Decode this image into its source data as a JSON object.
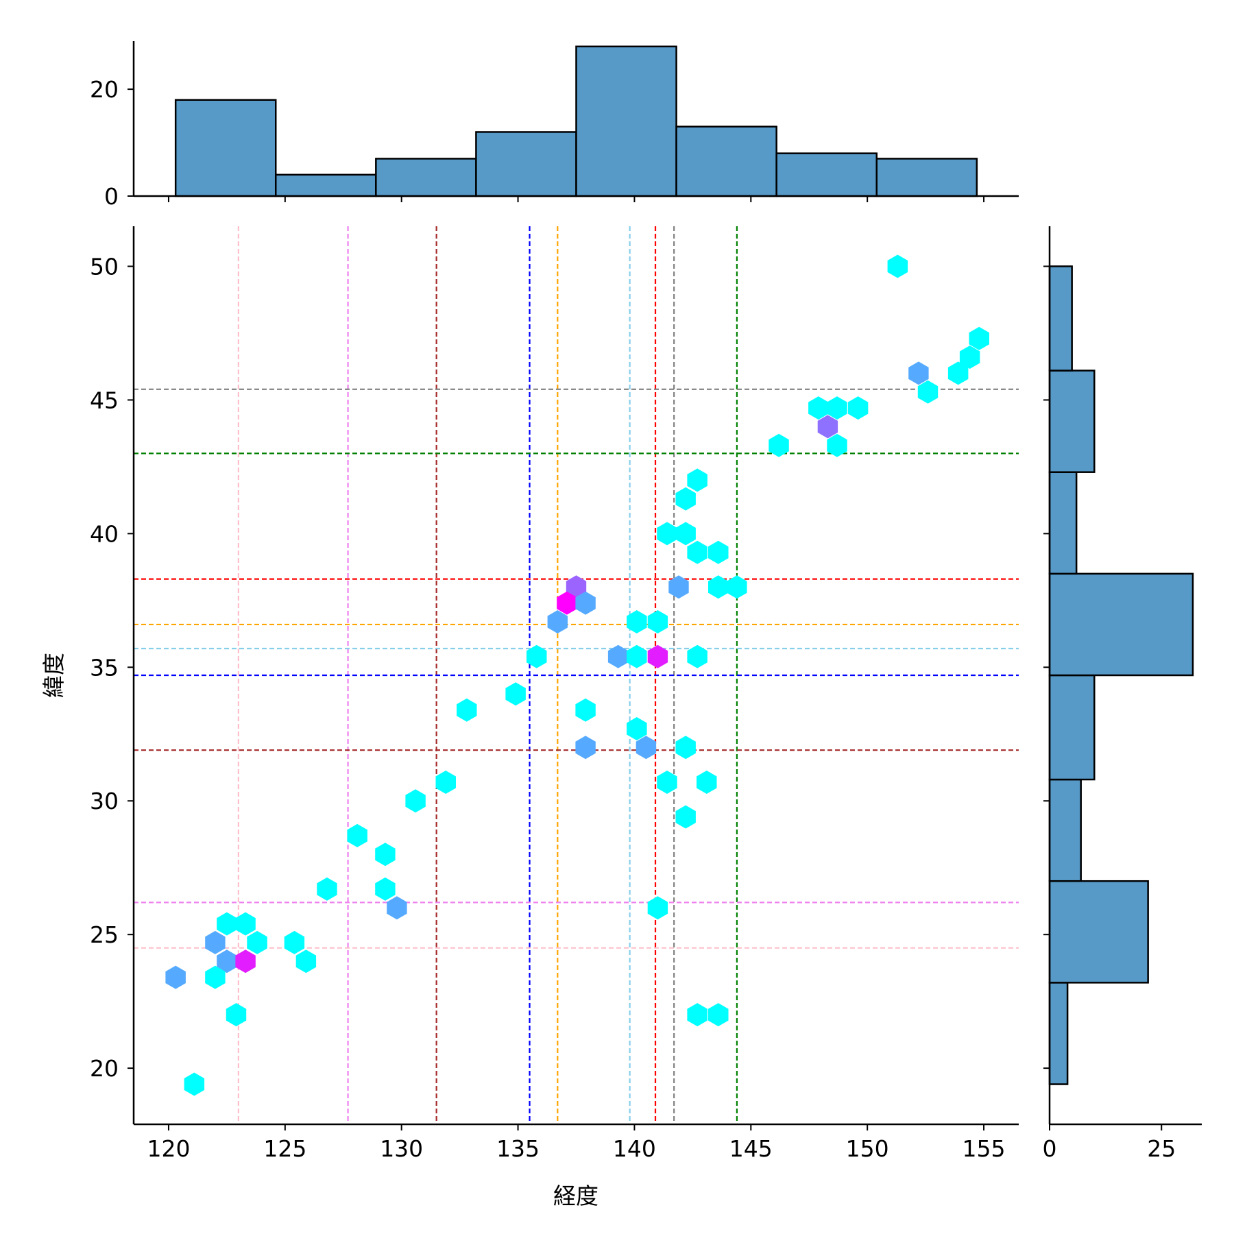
{
  "chart_data": {
    "type": "hexbin-jointplot",
    "xlabel": "経度",
    "ylabel": "緯度",
    "xlim": [
      118.5,
      156.5
    ],
    "ylim": [
      17.9,
      51.5
    ],
    "x_ticks": [
      120,
      125,
      130,
      135,
      140,
      145,
      150,
      155
    ],
    "y_ticks": [
      20,
      25,
      30,
      35,
      40,
      45,
      50
    ],
    "top_hist": {
      "bin_edges": [
        120.3,
        124.6,
        128.9,
        133.2,
        137.5,
        141.8,
        146.1,
        150.4,
        154.7
      ],
      "counts": [
        18,
        4,
        7,
        12,
        28,
        13,
        8,
        7
      ],
      "yticks": [
        0,
        20
      ],
      "ylim": [
        0,
        29
      ]
    },
    "right_hist": {
      "bin_edges": [
        19.4,
        23.2,
        27.0,
        30.8,
        34.7,
        38.5,
        42.3,
        46.1,
        50.0
      ],
      "counts": [
        4,
        22,
        7,
        10,
        32,
        6,
        10,
        5
      ],
      "xticks": [
        0,
        25
      ],
      "xlim": [
        0,
        34
      ]
    },
    "vlines": [
      {
        "x": 123.0,
        "color": "#ffc0cb"
      },
      {
        "x": 127.7,
        "color": "#ee82ee"
      },
      {
        "x": 131.5,
        "color": "#a52a2a"
      },
      {
        "x": 135.5,
        "color": "#0000ff"
      },
      {
        "x": 136.7,
        "color": "#ffa500"
      },
      {
        "x": 139.8,
        "color": "#87ceeb"
      },
      {
        "x": 140.9,
        "color": "#ff0000"
      },
      {
        "x": 141.7,
        "color": "#808080"
      },
      {
        "x": 144.4,
        "color": "#008000"
      }
    ],
    "hlines": [
      {
        "y": 45.4,
        "color": "#808080"
      },
      {
        "y": 43.0,
        "color": "#008000"
      },
      {
        "y": 38.3,
        "color": "#ff0000"
      },
      {
        "y": 36.6,
        "color": "#ffa500"
      },
      {
        "y": 35.7,
        "color": "#87ceeb"
      },
      {
        "y": 34.7,
        "color": "#0000ff"
      },
      {
        "y": 31.9,
        "color": "#a52a2a"
      },
      {
        "y": 26.2,
        "color": "#ee82ee"
      },
      {
        "y": 24.5,
        "color": "#ffc0cb"
      }
    ],
    "hexes": [
      {
        "x": 151.3,
        "y": 50.0,
        "color": "#00ffff"
      },
      {
        "x": 154.8,
        "y": 47.3,
        "color": "#00ffff"
      },
      {
        "x": 154.4,
        "y": 46.6,
        "color": "#00ffff"
      },
      {
        "x": 153.9,
        "y": 46.0,
        "color": "#00ffff"
      },
      {
        "x": 152.2,
        "y": 46.0,
        "color": "#55aaff"
      },
      {
        "x": 152.6,
        "y": 45.3,
        "color": "#00ffff"
      },
      {
        "x": 147.9,
        "y": 44.7,
        "color": "#00ffff"
      },
      {
        "x": 148.7,
        "y": 44.7,
        "color": "#00ffff"
      },
      {
        "x": 149.6,
        "y": 44.7,
        "color": "#00ffff"
      },
      {
        "x": 148.3,
        "y": 44.0,
        "color": "#8e71ff"
      },
      {
        "x": 146.2,
        "y": 43.3,
        "color": "#00ffff"
      },
      {
        "x": 148.7,
        "y": 43.3,
        "color": "#00ffff"
      },
      {
        "x": 142.7,
        "y": 42.0,
        "color": "#00ffff"
      },
      {
        "x": 142.2,
        "y": 41.3,
        "color": "#00ffff"
      },
      {
        "x": 141.4,
        "y": 40.0,
        "color": "#00ffff"
      },
      {
        "x": 142.2,
        "y": 40.0,
        "color": "#00ffff"
      },
      {
        "x": 142.7,
        "y": 39.3,
        "color": "#00ffff"
      },
      {
        "x": 143.6,
        "y": 39.3,
        "color": "#00ffff"
      },
      {
        "x": 137.5,
        "y": 38.0,
        "color": "#9b64ff"
      },
      {
        "x": 141.9,
        "y": 38.0,
        "color": "#55aaff"
      },
      {
        "x": 143.6,
        "y": 38.0,
        "color": "#00ffff"
      },
      {
        "x": 144.4,
        "y": 38.0,
        "color": "#00ffff"
      },
      {
        "x": 137.1,
        "y": 37.4,
        "color": "#ff00ff"
      },
      {
        "x": 137.9,
        "y": 37.4,
        "color": "#55aaff"
      },
      {
        "x": 136.7,
        "y": 36.7,
        "color": "#55aaff"
      },
      {
        "x": 140.1,
        "y": 36.7,
        "color": "#00ffff"
      },
      {
        "x": 141.0,
        "y": 36.7,
        "color": "#00ffff"
      },
      {
        "x": 135.8,
        "y": 35.4,
        "color": "#00ffff"
      },
      {
        "x": 139.3,
        "y": 35.4,
        "color": "#55aaff"
      },
      {
        "x": 140.1,
        "y": 35.4,
        "color": "#00ffff"
      },
      {
        "x": 141.0,
        "y": 35.4,
        "color": "#e21dff"
      },
      {
        "x": 142.7,
        "y": 35.4,
        "color": "#00ffff"
      },
      {
        "x": 134.9,
        "y": 34.0,
        "color": "#00ffff"
      },
      {
        "x": 132.8,
        "y": 33.4,
        "color": "#00ffff"
      },
      {
        "x": 137.9,
        "y": 33.4,
        "color": "#00ffff"
      },
      {
        "x": 140.1,
        "y": 32.7,
        "color": "#00ffff"
      },
      {
        "x": 137.9,
        "y": 32.0,
        "color": "#55aaff"
      },
      {
        "x": 140.5,
        "y": 32.0,
        "color": "#55aaff"
      },
      {
        "x": 142.2,
        "y": 32.0,
        "color": "#00ffff"
      },
      {
        "x": 131.9,
        "y": 30.7,
        "color": "#00ffff"
      },
      {
        "x": 141.4,
        "y": 30.7,
        "color": "#00ffff"
      },
      {
        "x": 143.1,
        "y": 30.7,
        "color": "#00ffff"
      },
      {
        "x": 130.6,
        "y": 30.0,
        "color": "#00ffff"
      },
      {
        "x": 142.2,
        "y": 29.4,
        "color": "#00ffff"
      },
      {
        "x": 128.1,
        "y": 28.7,
        "color": "#00ffff"
      },
      {
        "x": 129.3,
        "y": 28.0,
        "color": "#00ffff"
      },
      {
        "x": 126.8,
        "y": 26.7,
        "color": "#00ffff"
      },
      {
        "x": 129.3,
        "y": 26.7,
        "color": "#00ffff"
      },
      {
        "x": 129.8,
        "y": 26.0,
        "color": "#55aaff"
      },
      {
        "x": 141.0,
        "y": 26.0,
        "color": "#00ffff"
      },
      {
        "x": 122.5,
        "y": 25.4,
        "color": "#00ffff"
      },
      {
        "x": 123.3,
        "y": 25.4,
        "color": "#00ffff"
      },
      {
        "x": 122.0,
        "y": 24.7,
        "color": "#55aaff"
      },
      {
        "x": 123.8,
        "y": 24.7,
        "color": "#00ffff"
      },
      {
        "x": 125.4,
        "y": 24.7,
        "color": "#00ffff"
      },
      {
        "x": 122.5,
        "y": 24.0,
        "color": "#55aaff"
      },
      {
        "x": 123.3,
        "y": 24.0,
        "color": "#e21dff"
      },
      {
        "x": 125.9,
        "y": 24.0,
        "color": "#00ffff"
      },
      {
        "x": 120.3,
        "y": 23.4,
        "color": "#55aaff"
      },
      {
        "x": 122.0,
        "y": 23.4,
        "color": "#00ffff"
      },
      {
        "x": 122.9,
        "y": 22.0,
        "color": "#00ffff"
      },
      {
        "x": 142.7,
        "y": 22.0,
        "color": "#00ffff"
      },
      {
        "x": 143.6,
        "y": 22.0,
        "color": "#00ffff"
      },
      {
        "x": 121.1,
        "y": 19.4,
        "color": "#00ffff"
      }
    ]
  }
}
